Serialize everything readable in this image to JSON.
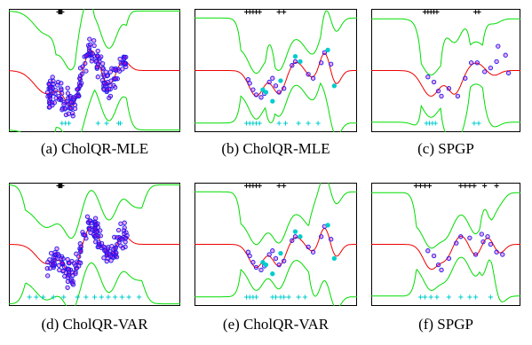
{
  "colors": {
    "envelope": "#00dd00",
    "mean": "#ee0000",
    "data_edge": "#1a1aee",
    "data_fill": "#cc00cc",
    "inducing_bottom": "#00cccc",
    "inducing_top": "#000000",
    "test_points": "#00cccc",
    "frame": "#000000"
  },
  "chart_data": [
    {
      "id": "a",
      "type": "scatter",
      "caption": "(a) CholQR-MLE",
      "grid": false,
      "xlim": [
        0,
        1
      ],
      "ylim": [
        -2.2,
        2.2
      ],
      "data_density": "dense",
      "noise_var": 0.35,
      "mean_fn": [
        [
          0.22,
          -0.9,
          0.07
        ],
        [
          0.37,
          -1.35,
          0.045
        ],
        [
          0.48,
          0.9,
          0.05
        ],
        [
          0.58,
          -0.7,
          0.045
        ],
        [
          0.66,
          0.5,
          0.035
        ]
      ],
      "inducing_bottom": [
        0.31,
        0.33,
        0.35,
        0.52,
        0.57,
        0.64,
        0.65
      ],
      "inducing_top": [
        0.29,
        0.295,
        0.3,
        0.305,
        0.31
      ],
      "points": [],
      "test_points": []
    },
    {
      "id": "b",
      "type": "scatter",
      "caption": "(b) CholQR-MLE",
      "grid": false,
      "xlim": [
        0,
        1
      ],
      "ylim": [
        -2.2,
        2.2
      ],
      "data_density": "sparse",
      "noise_var": 0.05,
      "mean_fn": [
        [
          0.38,
          -1.0,
          0.045
        ],
        [
          0.52,
          -0.9,
          0.04
        ],
        [
          0.62,
          0.35,
          0.04
        ],
        [
          0.73,
          -0.3,
          0.035
        ],
        [
          0.8,
          0.75,
          0.03
        ],
        [
          0.87,
          -0.55,
          0.03
        ]
      ],
      "inducing_bottom": [
        0.32,
        0.34,
        0.36,
        0.38,
        0.4,
        0.52,
        0.56,
        0.64,
        0.7,
        0.76
      ],
      "inducing_top": [
        0.32,
        0.34,
        0.36,
        0.38,
        0.4,
        0.52,
        0.55
      ],
      "points": [
        [
          0.33,
          -0.35
        ],
        [
          0.34,
          -0.5
        ],
        [
          0.36,
          -0.75
        ],
        [
          0.38,
          -0.95
        ],
        [
          0.41,
          -1.05
        ],
        [
          0.43,
          -0.9
        ],
        [
          0.46,
          -0.45
        ],
        [
          0.48,
          -0.3
        ],
        [
          0.5,
          -0.6
        ],
        [
          0.52,
          -0.85
        ],
        [
          0.55,
          -0.7
        ],
        [
          0.6,
          0.2
        ],
        [
          0.62,
          0.35
        ],
        [
          0.7,
          -0.15
        ],
        [
          0.73,
          -0.3
        ],
        [
          0.78,
          0.3
        ],
        [
          0.8,
          0.7
        ],
        [
          0.84,
          0.25
        ]
      ],
      "test_points": [
        [
          0.42,
          -0.75
        ],
        [
          0.44,
          -0.85
        ],
        [
          0.48,
          -1.2
        ],
        [
          0.53,
          -0.4
        ],
        [
          0.62,
          0.55
        ],
        [
          0.65,
          0.35
        ],
        [
          0.86,
          -0.6
        ],
        [
          0.82,
          0.8
        ]
      ]
    },
    {
      "id": "c",
      "type": "scatter",
      "caption": "(c) SPGP",
      "grid": false,
      "xlim": [
        0,
        1
      ],
      "ylim": [
        -2.2,
        2.2
      ],
      "data_density": "sparse",
      "noise_var": 0.02,
      "mean_fn": [
        [
          0.4,
          -1.0,
          0.06
        ],
        [
          0.56,
          -0.9,
          0.045
        ],
        [
          0.7,
          0.3,
          0.05
        ],
        [
          0.82,
          -0.2,
          0.04
        ]
      ],
      "inducing_bottom": [
        0.37,
        0.39,
        0.41,
        0.43,
        0.69,
        0.72
      ],
      "inducing_top": [
        0.36,
        0.38,
        0.4,
        0.42,
        0.44,
        0.7,
        0.72
      ],
      "points": [
        [
          0.38,
          -0.25
        ],
        [
          0.42,
          -0.45
        ],
        [
          0.45,
          -0.8
        ],
        [
          0.47,
          -1.0
        ],
        [
          0.52,
          -0.7
        ],
        [
          0.58,
          -1.0
        ],
        [
          0.63,
          -0.3
        ],
        [
          0.67,
          0.3
        ],
        [
          0.71,
          0.3
        ],
        [
          0.76,
          -0.05
        ],
        [
          0.8,
          0.1
        ],
        [
          0.84,
          0.35
        ],
        [
          0.9,
          0.6
        ],
        [
          0.92,
          -0.1
        ],
        [
          0.85,
          0.95
        ]
      ],
      "test_points": []
    },
    {
      "id": "d",
      "type": "scatter",
      "caption": "(d) CholQR-VAR",
      "grid": false,
      "xlim": [
        0,
        1
      ],
      "ylim": [
        -2.2,
        2.2
      ],
      "data_density": "dense",
      "noise_var": 0.35,
      "mean_fn": [
        [
          0.22,
          -0.75,
          0.06
        ],
        [
          0.37,
          -1.2,
          0.045
        ],
        [
          0.48,
          0.8,
          0.05
        ],
        [
          0.58,
          -0.6,
          0.045
        ],
        [
          0.66,
          0.45,
          0.035
        ]
      ],
      "inducing_bottom": [
        0.12,
        0.16,
        0.2,
        0.26,
        0.32,
        0.4,
        0.45,
        0.5,
        0.54,
        0.58,
        0.62,
        0.66,
        0.7,
        0.76
      ],
      "inducing_top": [
        0.29,
        0.295,
        0.3,
        0.305,
        0.31
      ],
      "points": [],
      "test_points": []
    },
    {
      "id": "e",
      "type": "scatter",
      "caption": "(e) CholQR-VAR",
      "grid": false,
      "xlim": [
        0,
        1
      ],
      "ylim": [
        -2.2,
        2.2
      ],
      "data_density": "sparse",
      "noise_var": 0.05,
      "mean_fn": [
        [
          0.38,
          -0.9,
          0.045
        ],
        [
          0.52,
          -0.85,
          0.04
        ],
        [
          0.62,
          0.3,
          0.04
        ],
        [
          0.73,
          -0.3,
          0.035
        ],
        [
          0.8,
          0.7,
          0.03
        ],
        [
          0.87,
          -0.5,
          0.03
        ]
      ],
      "inducing_bottom": [
        0.32,
        0.34,
        0.36,
        0.38,
        0.48,
        0.5,
        0.53,
        0.55,
        0.58,
        0.64,
        0.68
      ],
      "inducing_top": [
        0.32,
        0.34,
        0.36,
        0.38,
        0.4,
        0.52,
        0.55
      ],
      "points": [
        [
          0.33,
          -0.3
        ],
        [
          0.34,
          -0.45
        ],
        [
          0.36,
          -0.7
        ],
        [
          0.38,
          -0.9
        ],
        [
          0.41,
          -1.0
        ],
        [
          0.43,
          -0.85
        ],
        [
          0.46,
          -0.4
        ],
        [
          0.48,
          -0.25
        ],
        [
          0.5,
          -0.55
        ],
        [
          0.52,
          -0.8
        ],
        [
          0.55,
          -0.65
        ],
        [
          0.6,
          0.15
        ],
        [
          0.62,
          0.3
        ],
        [
          0.7,
          -0.1
        ],
        [
          0.73,
          -0.3
        ],
        [
          0.78,
          0.3
        ],
        [
          0.8,
          0.7
        ],
        [
          0.84,
          0.2
        ]
      ],
      "test_points": [
        [
          0.42,
          -0.7
        ],
        [
          0.44,
          -0.8
        ],
        [
          0.48,
          -1.15
        ],
        [
          0.53,
          -0.35
        ],
        [
          0.62,
          0.5
        ],
        [
          0.65,
          0.3
        ],
        [
          0.86,
          -0.55
        ],
        [
          0.82,
          0.75
        ]
      ]
    },
    {
      "id": "f",
      "type": "scatter",
      "caption": "(f) SPGP",
      "grid": false,
      "xlim": [
        0,
        1
      ],
      "ylim": [
        -2.2,
        2.2
      ],
      "data_density": "sparse",
      "noise_var": 0.02,
      "mean_fn": [
        [
          0.4,
          -0.95,
          0.05
        ],
        [
          0.5,
          -0.5,
          0.04
        ],
        [
          0.6,
          0.35,
          0.04
        ],
        [
          0.7,
          -0.45,
          0.035
        ],
        [
          0.78,
          0.3,
          0.035
        ],
        [
          0.86,
          -0.35,
          0.035
        ]
      ],
      "inducing_bottom": [
        0.33,
        0.36,
        0.4,
        0.44,
        0.52,
        0.6,
        0.66,
        0.7,
        0.8
      ],
      "inducing_top": [
        0.3,
        0.33,
        0.36,
        0.39,
        0.6,
        0.63,
        0.66,
        0.69,
        0.76,
        0.84
      ],
      "points": [
        [
          0.38,
          -0.25
        ],
        [
          0.42,
          -0.45
        ],
        [
          0.45,
          -0.8
        ],
        [
          0.47,
          -1.0
        ],
        [
          0.52,
          -0.55
        ],
        [
          0.57,
          0.05
        ],
        [
          0.6,
          0.3
        ],
        [
          0.66,
          0.25
        ],
        [
          0.7,
          -0.4
        ],
        [
          0.75,
          0.1
        ],
        [
          0.78,
          0.3
        ],
        [
          0.8,
          0.0
        ],
        [
          0.84,
          -0.3
        ],
        [
          0.88,
          -0.4
        ],
        [
          0.74,
          0.4
        ]
      ],
      "test_points": []
    }
  ]
}
